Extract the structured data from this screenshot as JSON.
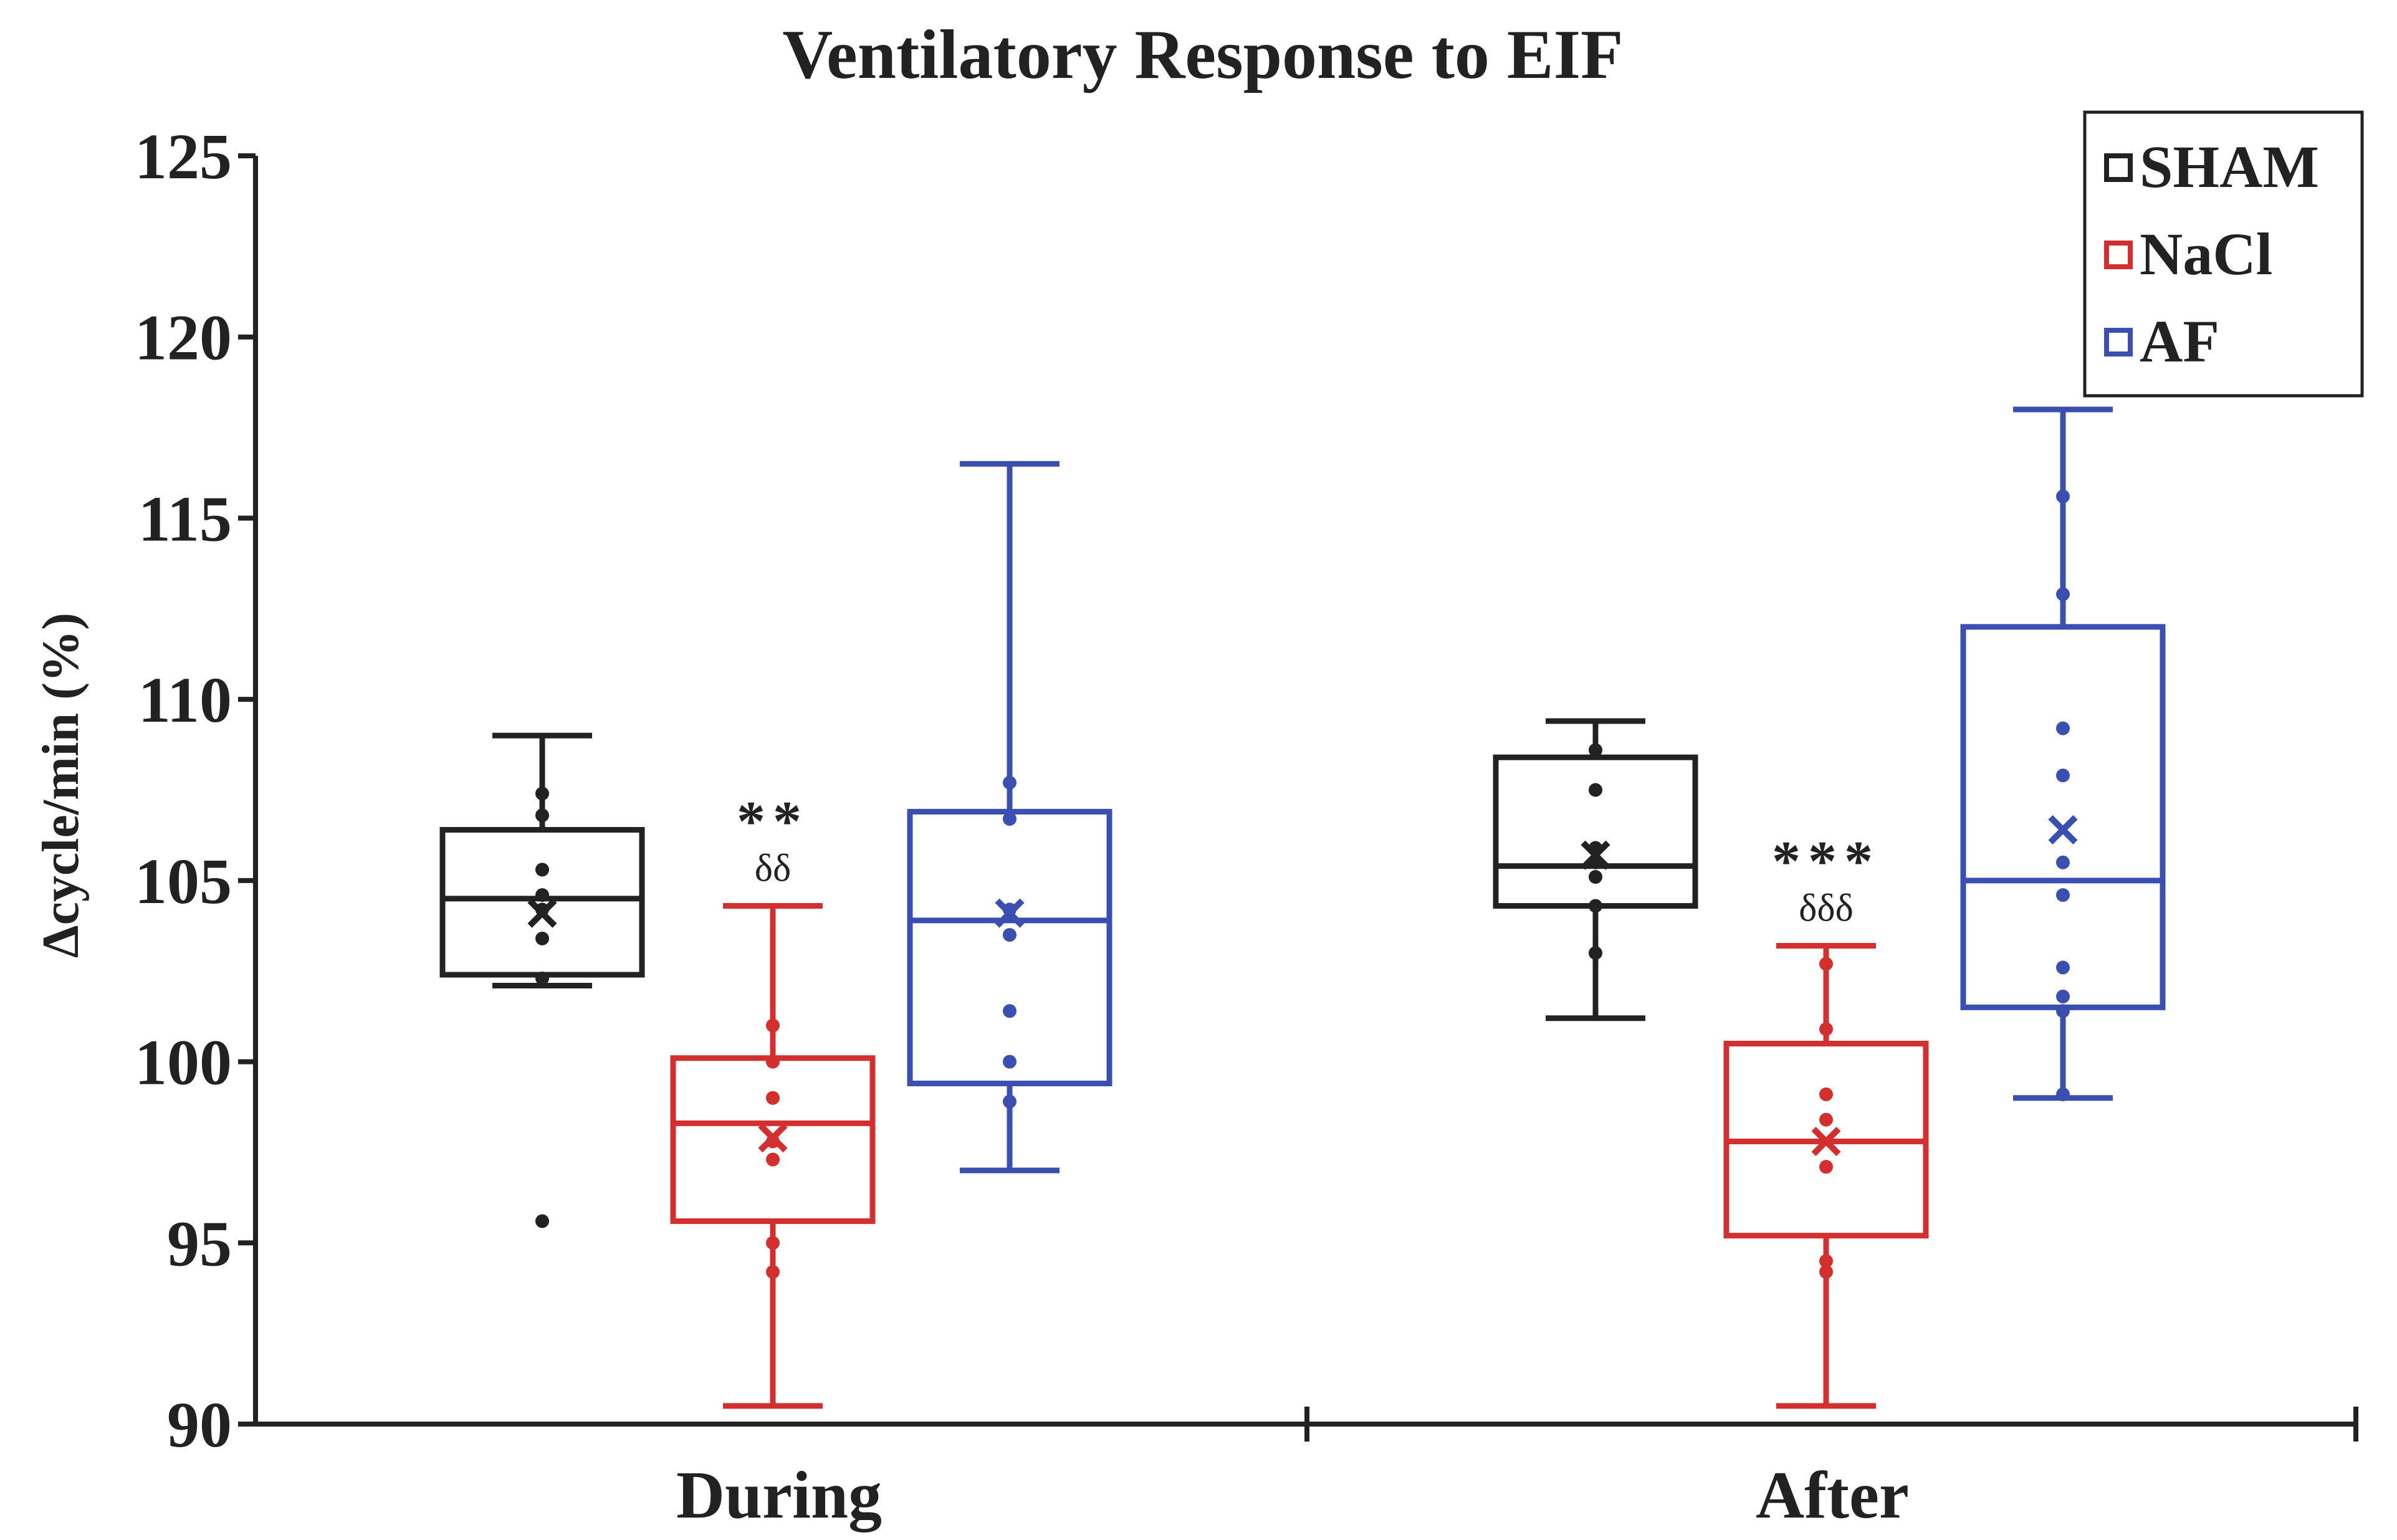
{
  "chart_data": {
    "type": "box",
    "title": "Ventilatory Response to EIF",
    "ylabel": "Δcycle/min (%)",
    "xlabel": "",
    "ylim": [
      90,
      125
    ],
    "yticks": [
      90,
      95,
      100,
      105,
      110,
      115,
      120,
      125
    ],
    "categories": [
      "During",
      "After"
    ],
    "legend": {
      "position": "top-right"
    },
    "series": [
      {
        "name": "SHAM",
        "color": "#222222",
        "boxes": [
          {
            "category": "During",
            "min": 102.1,
            "q1": 102.4,
            "median": 104.5,
            "q3": 106.4,
            "max": 109.0,
            "mean": 104.1,
            "points": [
              107.4,
              106.8,
              105.3,
              104.6,
              104.2,
              103.4,
              102.3,
              95.6
            ],
            "annotation": []
          },
          {
            "category": "After",
            "min": 101.2,
            "q1": 104.3,
            "median": 105.4,
            "q3": 108.4,
            "max": 109.4,
            "mean": 105.7,
            "points": [
              108.6,
              107.5,
              105.9,
              105.5,
              105.1,
              104.3,
              103.0
            ],
            "annotation": []
          }
        ]
      },
      {
        "name": "NaCl",
        "color": "#d32f2f",
        "boxes": [
          {
            "category": "During",
            "min": 90.5,
            "q1": 95.6,
            "median": 98.3,
            "q3": 100.1,
            "max": 104.3,
            "mean": 97.9,
            "points": [
              101.0,
              100.0,
              99.0,
              97.8,
              97.3,
              95.0,
              94.2
            ],
            "annotation": [
              "**",
              "δδ"
            ]
          },
          {
            "category": "After",
            "min": 90.5,
            "q1": 95.2,
            "median": 97.8,
            "q3": 100.5,
            "max": 103.2,
            "mean": 97.8,
            "points": [
              102.7,
              100.9,
              99.1,
              98.4,
              97.1,
              94.5,
              94.2
            ],
            "annotation": [
              "***",
              "δδδ"
            ]
          }
        ]
      },
      {
        "name": "AF",
        "color": "#3b4fb0",
        "boxes": [
          {
            "category": "During",
            "min": 97.0,
            "q1": 99.4,
            "median": 103.9,
            "q3": 106.9,
            "max": 116.5,
            "mean": 104.1,
            "points": [
              107.7,
              106.7,
              104.2,
              103.5,
              101.4,
              100.0,
              98.9
            ],
            "annotation": []
          },
          {
            "category": "After",
            "min": 99.0,
            "q1": 101.5,
            "median": 105.0,
            "q3": 112.0,
            "max": 118.0,
            "mean": 106.4,
            "points": [
              115.6,
              112.9,
              109.2,
              107.9,
              105.5,
              104.6,
              102.6,
              101.8,
              101.4,
              99.1
            ],
            "annotation": []
          }
        ]
      }
    ]
  }
}
